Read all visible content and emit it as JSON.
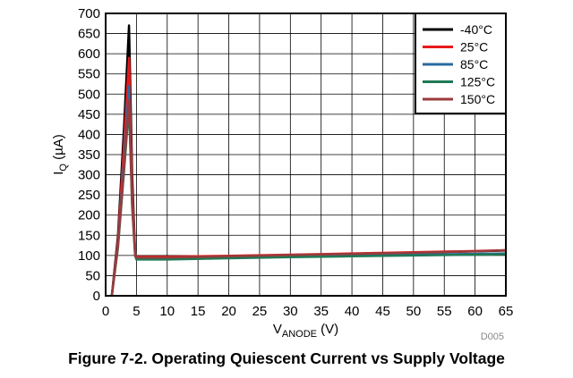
{
  "caption": "Figure 7-2. Operating Quiescent Current vs Supply Voltage",
  "figure_code": "D005",
  "chart_data": {
    "type": "line",
    "xlabel_main": "V",
    "xlabel_sub": "ANODE",
    "xlabel_unit": " (V)",
    "ylabel_main": "I",
    "ylabel_sub": "Q",
    "ylabel_unit": " (µA)",
    "xlim": [
      0,
      65
    ],
    "ylim": [
      0,
      700
    ],
    "xticks": [
      0,
      5,
      10,
      15,
      20,
      25,
      30,
      35,
      40,
      45,
      50,
      55,
      60,
      65
    ],
    "yticks": [
      0,
      50,
      100,
      150,
      200,
      250,
      300,
      350,
      400,
      450,
      500,
      550,
      600,
      650,
      700
    ],
    "grid": true,
    "legend_position": "top-right",
    "series": [
      {
        "name": "-40°C",
        "color": "#000000",
        "points": [
          [
            1,
            0
          ],
          [
            2,
            150
          ],
          [
            3,
            420
          ],
          [
            3.8,
            670
          ],
          [
            4.3,
            300
          ],
          [
            4.8,
            100
          ],
          [
            5,
            96
          ],
          [
            10,
            96
          ],
          [
            20,
            98
          ],
          [
            30,
            101
          ],
          [
            40,
            104
          ],
          [
            50,
            107
          ],
          [
            60,
            110
          ],
          [
            65,
            112
          ]
        ]
      },
      {
        "name": "25°C",
        "color": "#e8191a",
        "points": [
          [
            1,
            0
          ],
          [
            2,
            140
          ],
          [
            3,
            380
          ],
          [
            3.8,
            590
          ],
          [
            4.3,
            270
          ],
          [
            4.8,
            100
          ],
          [
            5,
            97
          ],
          [
            10,
            97
          ],
          [
            20,
            99
          ],
          [
            30,
            102
          ],
          [
            40,
            105
          ],
          [
            50,
            108
          ],
          [
            60,
            111
          ],
          [
            65,
            113
          ]
        ]
      },
      {
        "name": "85°C",
        "color": "#2a6a9e",
        "points": [
          [
            1,
            0
          ],
          [
            2,
            130
          ],
          [
            3,
            340
          ],
          [
            3.8,
            520
          ],
          [
            4.3,
            240
          ],
          [
            4.8,
            100
          ],
          [
            5,
            94
          ],
          [
            10,
            93
          ],
          [
            20,
            95
          ],
          [
            30,
            98
          ],
          [
            40,
            100
          ],
          [
            50,
            102
          ],
          [
            60,
            104
          ],
          [
            65,
            105
          ]
        ]
      },
      {
        "name": "125°C",
        "color": "#1f7a55",
        "points": [
          [
            1,
            0
          ],
          [
            2,
            120
          ],
          [
            3,
            310
          ],
          [
            3.8,
            470
          ],
          [
            4.3,
            220
          ],
          [
            4.8,
            98
          ],
          [
            5,
            90
          ],
          [
            10,
            90
          ],
          [
            20,
            93
          ],
          [
            30,
            96
          ],
          [
            40,
            98
          ],
          [
            50,
            100
          ],
          [
            60,
            102
          ],
          [
            65,
            103
          ]
        ]
      },
      {
        "name": "150°C",
        "color": "#9b3b3b",
        "points": [
          [
            1,
            0
          ],
          [
            2,
            125
          ],
          [
            3,
            320
          ],
          [
            3.8,
            485
          ],
          [
            4.3,
            230
          ],
          [
            4.8,
            99
          ],
          [
            5,
            95
          ],
          [
            10,
            95
          ],
          [
            20,
            98
          ],
          [
            30,
            101
          ],
          [
            40,
            104
          ],
          [
            50,
            107
          ],
          [
            60,
            110
          ],
          [
            65,
            113
          ]
        ]
      }
    ]
  }
}
